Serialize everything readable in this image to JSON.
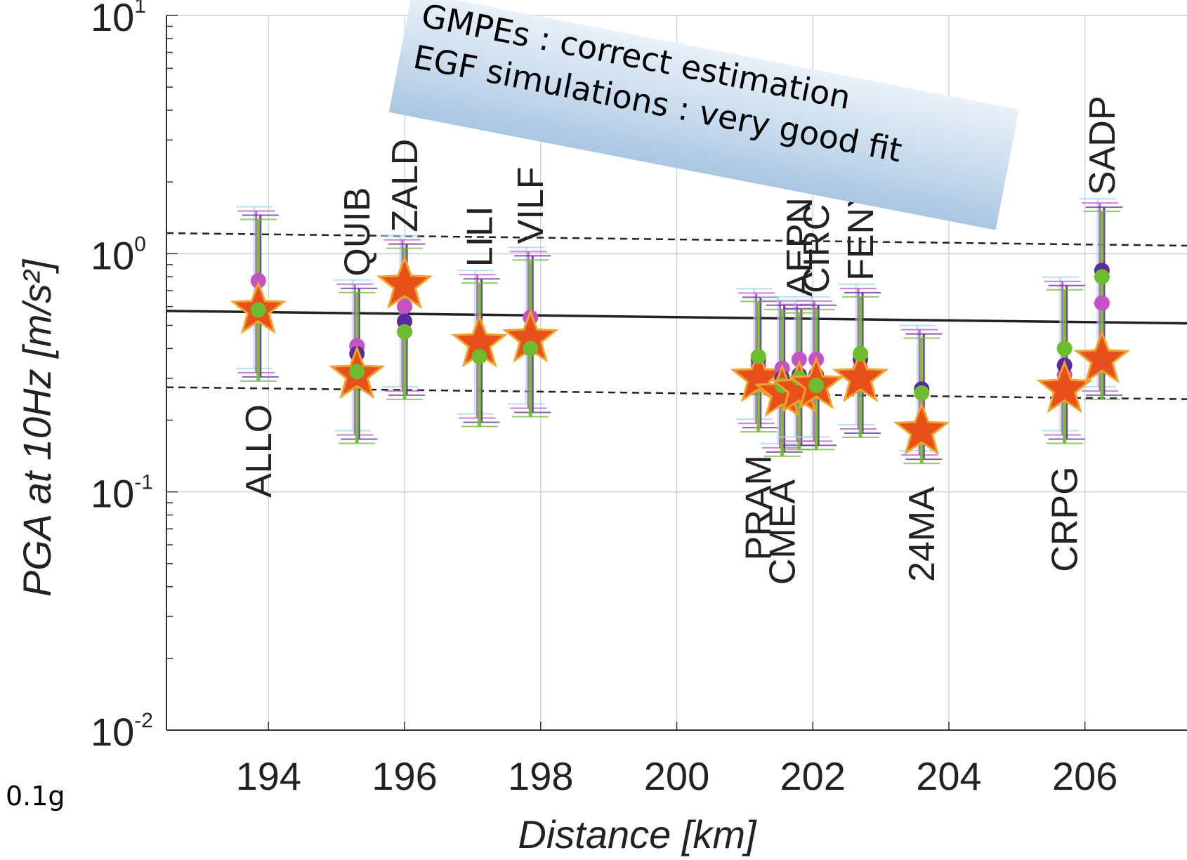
{
  "chart_data": {
    "type": "scatter",
    "xlabel": "Distance [km]",
    "ylabel": "PGA at 10Hz [m/s²]",
    "xlim": [
      192.5,
      207.5
    ],
    "ylim": [
      0.01,
      10
    ],
    "yscale": "log",
    "grid": true,
    "x_ticks": [
      194,
      196,
      198,
      200,
      202,
      204,
      206
    ],
    "y_ticks": [
      {
        "value": 0.01,
        "base": "10",
        "exp": "-2"
      },
      {
        "value": 0.1,
        "base": "10",
        "exp": "-1"
      },
      {
        "value": 1,
        "base": "10",
        "exp": "0"
      },
      {
        "value": 10,
        "base": "10",
        "exp": "1"
      }
    ],
    "median_line": {
      "x": [
        192.5,
        207.5
      ],
      "y": [
        0.575,
        0.51
      ]
    },
    "upper_bound_line": {
      "x": [
        192.5,
        207.5
      ],
      "y": [
        1.22,
        1.08
      ]
    },
    "lower_bound_line": {
      "x": [
        192.5,
        207.5
      ],
      "y": [
        0.275,
        0.245
      ]
    },
    "stations": [
      {
        "name": "ALLO",
        "x": 193.85,
        "observed": 0.58,
        "sim_magenta": 0.77,
        "sim_purple": 0.62,
        "sim_green": 0.58,
        "err_low": 0.31,
        "err_high": 1.48,
        "label_pos": "below"
      },
      {
        "name": "QUIB",
        "x": 195.3,
        "observed": 0.31,
        "sim_magenta": 0.41,
        "sim_purple": 0.38,
        "sim_green": 0.32,
        "err_low": 0.17,
        "err_high": 0.73,
        "label_pos": "above"
      },
      {
        "name": "ZALD",
        "x": 196.0,
        "observed": 0.74,
        "sim_magenta": 0.6,
        "sim_purple": 0.52,
        "sim_green": 0.47,
        "err_low": 0.26,
        "err_high": 1.12,
        "label_pos": "above"
      },
      {
        "name": "LILI",
        "x": 197.1,
        "observed": 0.42,
        "sim_magenta": 0.45,
        "sim_purple": 0.43,
        "sim_green": 0.37,
        "err_low": 0.2,
        "err_high": 0.8,
        "label_pos": "above"
      },
      {
        "name": "VILF",
        "x": 197.85,
        "observed": 0.44,
        "sim_magenta": 0.54,
        "sim_purple": 0.45,
        "sim_green": 0.4,
        "err_low": 0.22,
        "err_high": 1.0,
        "label_pos": "above"
      },
      {
        "name": "PRAM",
        "x": 201.2,
        "observed": 0.3,
        "sim_magenta": 0.34,
        "sim_purple": 0.36,
        "sim_green": 0.37,
        "err_low": 0.19,
        "err_high": 0.67,
        "label_pos": "below"
      },
      {
        "name": "CMEA",
        "x": 201.55,
        "observed": 0.26,
        "sim_magenta": 0.33,
        "sim_purple": 0.3,
        "sim_green": 0.28,
        "err_low": 0.15,
        "err_high": 0.62,
        "label_pos": "below"
      },
      {
        "name": "AEPN",
        "x": 201.8,
        "observed": 0.27,
        "sim_magenta": 0.36,
        "sim_purple": 0.31,
        "sim_green": 0.3,
        "err_low": 0.16,
        "err_high": 0.6,
        "label_pos": "above"
      },
      {
        "name": "CIRC",
        "x": 202.05,
        "observed": 0.28,
        "sim_magenta": 0.36,
        "sim_purple": 0.31,
        "sim_green": 0.28,
        "err_low": 0.16,
        "err_high": 0.62,
        "label_pos": "above"
      },
      {
        "name": "FENY",
        "x": 202.7,
        "observed": 0.3,
        "sim_magenta": 0.33,
        "sim_purple": 0.36,
        "sim_green": 0.38,
        "err_low": 0.18,
        "err_high": 0.7,
        "label_pos": "above"
      },
      {
        "name": "24MA",
        "x": 203.6,
        "observed": 0.18,
        "sim_magenta": 0.27,
        "sim_purple": 0.27,
        "sim_green": 0.26,
        "err_low": 0.14,
        "err_high": 0.47,
        "label_pos": "below"
      },
      {
        "name": "CRPG",
        "x": 205.7,
        "observed": 0.27,
        "sim_magenta": 0.31,
        "sim_purple": 0.34,
        "sim_green": 0.4,
        "err_low": 0.17,
        "err_high": 0.75,
        "label_pos": "below"
      },
      {
        "name": "SADP",
        "x": 206.25,
        "observed": 0.36,
        "sim_magenta": 0.62,
        "sim_purple": 0.85,
        "sim_green": 0.8,
        "err_low": 0.26,
        "err_high": 1.6,
        "label_pos": "above"
      }
    ]
  },
  "callout": {
    "line1": "GMPEs : correct estimation",
    "line2": "EGF simulations : very good fit"
  },
  "side_note": "0.1g",
  "colors": {
    "magenta": "#c452c6",
    "purple": "#5a2b9c",
    "green": "#6dbb2e",
    "star_fill": "#e8501b",
    "star_edge": "#f2a12a",
    "light_blue": "#9fd6e6"
  }
}
